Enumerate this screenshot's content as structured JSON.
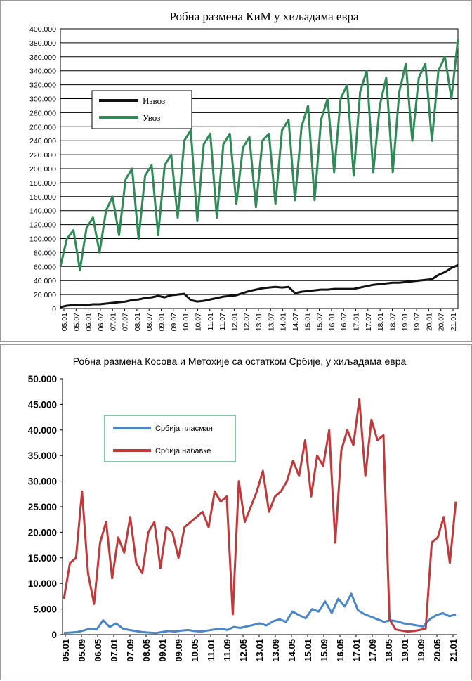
{
  "charts_colors": {
    "izvoz": "#111111",
    "uvoz": "#2e8b57",
    "plasman": "#4a86c8",
    "nabavke": "#c0393b",
    "grid": "#000000",
    "legend_border2": "#3aa06e"
  },
  "chart_data": [
    {
      "type": "line",
      "title": "Робна размена КиМ у хиљадама евра",
      "xlabel": "",
      "ylabel": "",
      "ylim": [
        0,
        400000
      ],
      "y_ticks": [
        "0",
        "20.000",
        "40.000",
        "60.000",
        "80.000",
        "100.000",
        "120.000",
        "140.000",
        "160.000",
        "180.000",
        "200.000",
        "220.000",
        "240.000",
        "260.000",
        "280.000",
        "300.000",
        "320.000",
        "340.000",
        "360.000",
        "380.000",
        "400.000"
      ],
      "x_ticks": [
        "05.01",
        "05.07",
        "06.01",
        "06.07",
        "07.01",
        "07.07",
        "08.01",
        "08.07",
        "09.01",
        "09.07",
        "10.01",
        "10.07",
        "11.01",
        "11.07",
        "12.01",
        "12.07",
        "13.01",
        "13.07",
        "14.01",
        "14.07",
        "15.01",
        "15.07",
        "16.01",
        "16.07",
        "17.01",
        "17.07",
        "18.01",
        "18.07",
        "19.01",
        "19.07",
        "20.01",
        "20.07",
        "21.01"
      ],
      "grid": "horizontal",
      "legend_position": "top-left",
      "series": [
        {
          "name": "Извоз",
          "key": "izvoz",
          "values": [
            2,
            4,
            5,
            5,
            5,
            6,
            6,
            7,
            8,
            9,
            10,
            12,
            13,
            15,
            16,
            18,
            16,
            19,
            20,
            21,
            12,
            10,
            11,
            13,
            15,
            17,
            18,
            19,
            22,
            25,
            27,
            29,
            30,
            31,
            30,
            31,
            22,
            24,
            25,
            26,
            27,
            27,
            28,
            28,
            28,
            28,
            30,
            32,
            34,
            35,
            36,
            37,
            37,
            38,
            39,
            40,
            41,
            42,
            48,
            52,
            58,
            62
          ]
        },
        {
          "name": "Увоз",
          "key": "uvoz",
          "values": [
            60,
            100,
            112,
            55,
            115,
            130,
            80,
            140,
            160,
            105,
            185,
            200,
            100,
            190,
            205,
            105,
            205,
            220,
            130,
            240,
            255,
            125,
            235,
            250,
            130,
            235,
            250,
            150,
            230,
            245,
            145,
            240,
            250,
            150,
            255,
            270,
            155,
            260,
            290,
            155,
            270,
            300,
            195,
            300,
            320,
            190,
            310,
            340,
            195,
            290,
            330,
            195,
            310,
            350,
            240,
            330,
            350,
            240,
            340,
            360,
            300,
            385
          ]
        }
      ]
    },
    {
      "type": "line",
      "title": "Робна размена Косова и Метохије са остатком Србије, у хиљадама евра",
      "xlabel": "",
      "ylabel": "",
      "ylim": [
        0,
        50000
      ],
      "y_ticks": [
        "0",
        "5.000",
        "10.000",
        "15.000",
        "20.000",
        "25.000",
        "30.000",
        "35.000",
        "40.000",
        "45.000",
        "50.000"
      ],
      "x_ticks": [
        "05.01",
        "05.09",
        "06.05",
        "07.01",
        "07.09",
        "08.05",
        "09.01",
        "09.09",
        "10.05",
        "11.01",
        "11.09",
        "12.05",
        "13.01",
        "13.09",
        "14.05",
        "15.01",
        "15.09",
        "16.05",
        "17.01",
        "17.09",
        "18.05",
        "19.01",
        "19.09",
        "20.05",
        "21.01"
      ],
      "grid": "none",
      "legend_position": "top-left",
      "series": [
        {
          "name": "Србија пласман",
          "key": "plasman",
          "values": [
            300,
            400,
            500,
            800,
            1200,
            1000,
            2800,
            1500,
            2200,
            1200,
            900,
            700,
            500,
            400,
            300,
            500,
            700,
            600,
            800,
            900,
            700,
            600,
            800,
            1000,
            1200,
            900,
            1500,
            1300,
            1600,
            1900,
            2200,
            1800,
            2600,
            3000,
            2500,
            4500,
            3800,
            3200,
            5000,
            4500,
            6500,
            4200,
            7000,
            5500,
            8000,
            4800,
            4000,
            3500,
            3000,
            2500,
            2800,
            2600,
            2200,
            2000,
            1800,
            1600,
            3000,
            3800,
            4200,
            3600,
            3900
          ]
        },
        {
          "name": "Србија набавке",
          "key": "nabavke",
          "values": [
            7000,
            14000,
            15000,
            28000,
            12000,
            6000,
            18000,
            22000,
            11000,
            19000,
            16000,
            23000,
            14000,
            12000,
            20000,
            22000,
            13000,
            21000,
            20000,
            15000,
            21000,
            22000,
            23000,
            24000,
            21000,
            28000,
            26000,
            27000,
            4000,
            30000,
            22000,
            25000,
            28000,
            32000,
            24000,
            27000,
            28000,
            30000,
            34000,
            31000,
            38000,
            27000,
            35000,
            33000,
            40000,
            18000,
            36000,
            40000,
            37000,
            46000,
            31000,
            42000,
            38000,
            39000,
            3000,
            1000,
            800,
            600,
            700,
            900,
            1200,
            18000,
            19000,
            23000,
            14000,
            26000
          ]
        }
      ]
    }
  ]
}
